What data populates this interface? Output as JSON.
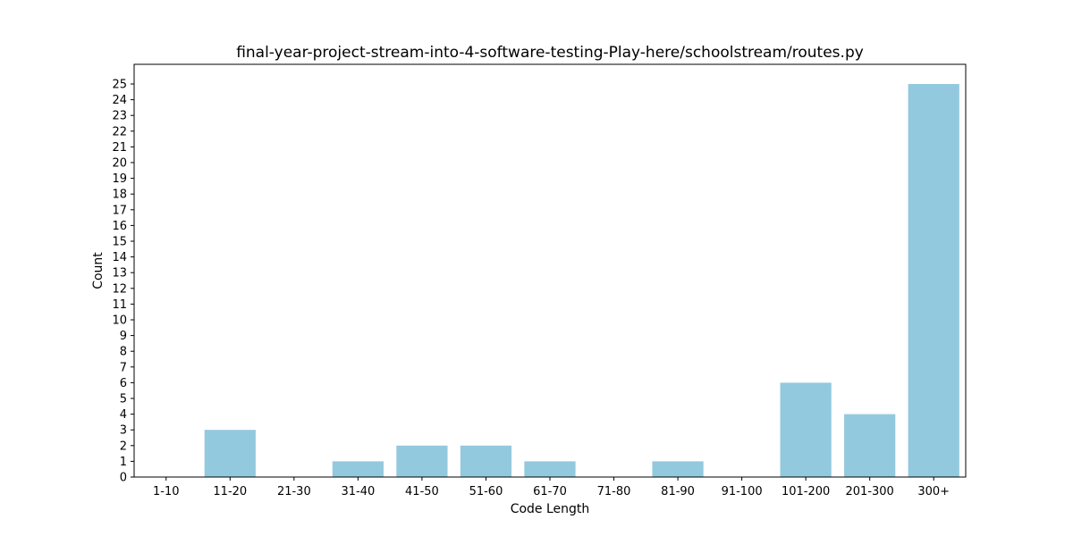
{
  "chart_data": {
    "type": "bar",
    "title": "final-year-project-stream-into-4-software-testing-Play-here/schoolstream/routes.py",
    "xlabel": "Code Length",
    "ylabel": "Count",
    "categories": [
      "1-10",
      "11-20",
      "21-30",
      "31-40",
      "41-50",
      "51-60",
      "61-70",
      "71-80",
      "81-90",
      "91-100",
      "101-200",
      "201-300",
      "300+"
    ],
    "values": [
      0,
      3,
      0,
      1,
      2,
      2,
      1,
      0,
      1,
      0,
      6,
      4,
      25
    ],
    "ylim": [
      0,
      26.25
    ],
    "yticks": [
      0,
      1,
      2,
      3,
      4,
      5,
      6,
      7,
      8,
      9,
      10,
      11,
      12,
      13,
      14,
      15,
      16,
      17,
      18,
      19,
      20,
      21,
      22,
      23,
      24,
      25
    ],
    "grid": false,
    "colors": {
      "bar": "#93c9de",
      "axis": "#000000"
    }
  }
}
